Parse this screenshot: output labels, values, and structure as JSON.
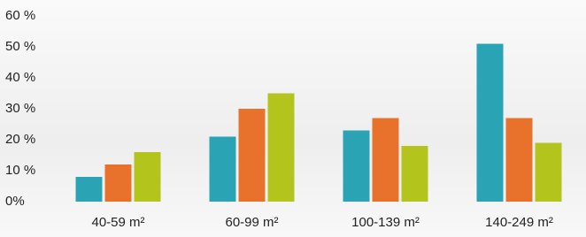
{
  "chart_data": {
    "type": "bar",
    "categories": [
      "40-59 m²",
      "60-99 m²",
      "100-139 m²",
      "140-249 m²"
    ],
    "series": [
      {
        "color": "#2aa3b5",
        "values": [
          8,
          21,
          23,
          51
        ]
      },
      {
        "color": "#e8722c",
        "values": [
          12,
          30,
          27,
          27
        ]
      },
      {
        "color": "#b3c51c",
        "values": [
          16,
          35,
          18,
          19
        ]
      }
    ],
    "ylim": [
      0,
      60
    ],
    "yticks": [
      {
        "value": 0,
        "label": "0%"
      },
      {
        "value": 10,
        "label": "10 %"
      },
      {
        "value": 20,
        "label": "20 %"
      },
      {
        "value": 30,
        "label": "30 %"
      },
      {
        "value": 40,
        "label": "40 %"
      },
      {
        "value": 50,
        "label": "50 %"
      },
      {
        "value": 60,
        "label": "60 %"
      }
    ],
    "grid": false
  }
}
